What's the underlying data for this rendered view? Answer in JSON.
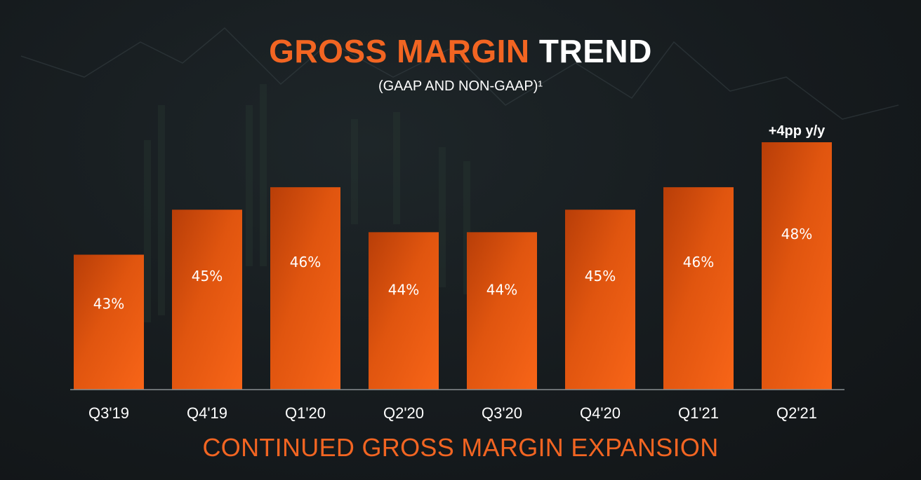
{
  "title": {
    "accent": "GROSS MARGIN",
    "rest": "TREND"
  },
  "subtitle": "(GAAP AND NON-GAAP)¹",
  "footer": "CONTINUED GROSS MARGIN EXPANSION",
  "colors": {
    "accent": "#f26522",
    "bar_top": "#b83e08",
    "bar_bottom": "#f86518",
    "text": "#ffffff",
    "background": "#151a1d"
  },
  "chart_data": {
    "type": "bar",
    "title": "GROSS MARGIN TREND",
    "subtitle": "(GAAP AND NON-GAAP)¹",
    "categories": [
      "Q3'19",
      "Q4'19",
      "Q1'20",
      "Q2'20",
      "Q3'20",
      "Q4'20",
      "Q1'21",
      "Q2'21"
    ],
    "values": [
      43,
      45,
      46,
      44,
      44,
      45,
      46,
      48
    ],
    "labels": [
      "43%",
      "45%",
      "46%",
      "44%",
      "44%",
      "45%",
      "46%",
      "48%"
    ],
    "unit": "%",
    "ylim": [
      37,
      48
    ],
    "annotation": {
      "category": "Q2'21",
      "text": "+4pp y/y"
    },
    "xlabel": "",
    "ylabel": "",
    "grid": false
  }
}
